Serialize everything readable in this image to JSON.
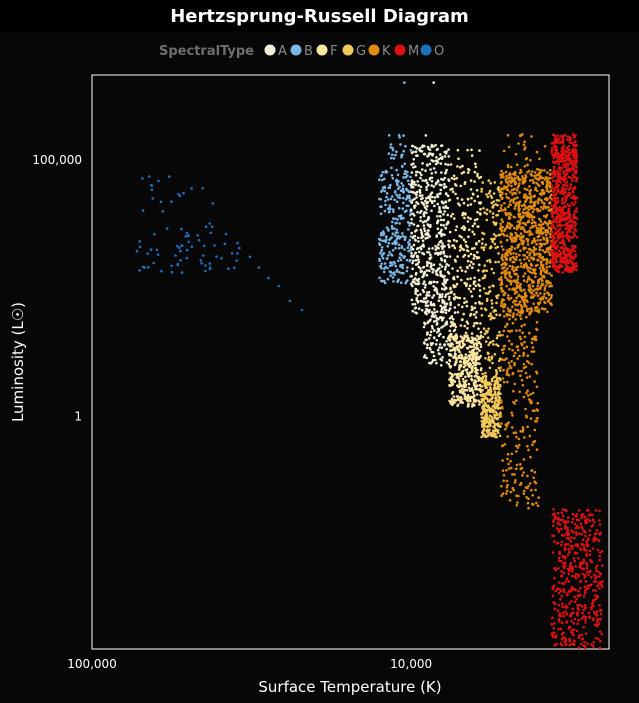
{
  "chart_data": {
    "type": "scatter",
    "title": "Hertzsprung-Russell Diagram",
    "xlabel": "Surface Temperature (K)",
    "ylabel": "Luminosity (L☉)",
    "x_scale": "log",
    "x_reversed": true,
    "x_range": [
      100000,
      2400
    ],
    "y_scale": "log",
    "y_range": [
      3e-05,
      4500000
    ],
    "x_ticks": [
      {
        "value": 100000,
        "label": "100,000"
      },
      {
        "value": 10000,
        "label": "10,000"
      }
    ],
    "y_ticks": [
      {
        "value": 100000,
        "label": "100,000"
      },
      {
        "value": 1,
        "label": "1"
      }
    ],
    "legend": {
      "title": "SpectralType",
      "position": "top",
      "entries": [
        "A",
        "B",
        "F",
        "G",
        "K",
        "M",
        "O"
      ]
    },
    "grid": false,
    "series": [
      {
        "name": "O",
        "color": "#1f6fbf",
        "temp_range": [
          25000,
          70000
        ],
        "clusters": [
          {
            "logT": [
              4.51,
              4.86
            ],
            "logL": [
              2.8,
              3.6
            ],
            "n": 55
          },
          {
            "logT": [
              4.56,
              4.86
            ],
            "logL": [
              3.5,
              4.8
            ],
            "n": 15
          },
          {
            "logT": [
              4.78,
              4.86
            ],
            "logL": [
              3.8,
              4.6
            ],
            "n": 5
          }
        ],
        "points": [
          {
            "x": 60000,
            "y": 10000
          },
          {
            "x": 53000,
            "y": 20000
          },
          {
            "x": 45000,
            "y": 28000
          },
          {
            "x": 42000,
            "y": 5000
          },
          {
            "x": 38000,
            "y": 3600
          },
          {
            "x": 35000,
            "y": 2400
          },
          {
            "x": 32000,
            "y": 1300
          },
          {
            "x": 30000,
            "y": 800
          },
          {
            "x": 28000,
            "y": 500
          },
          {
            "x": 26000,
            "y": 350
          },
          {
            "x": 24000,
            "y": 180
          },
          {
            "x": 22000,
            "y": 120
          }
        ]
      },
      {
        "name": "B",
        "color": "#7bb8e8",
        "temp_range": [
          10000,
          30000
        ],
        "clusters": [
          {
            "logT": [
              4.0,
              4.1
            ],
            "logL": [
              2.6,
              4.8
            ],
            "n": 260
          },
          {
            "logT": [
              4.0,
              4.08
            ],
            "logL": [
              4.8,
              5.5
            ],
            "n": 25
          }
        ],
        "points": [
          {
            "x": 10500,
            "y": 3200000
          },
          {
            "x": 10800,
            "y": 200000
          }
        ]
      },
      {
        "name": "A",
        "color": "#f4f0d6",
        "temp_range": [
          7500,
          10000
        ],
        "clusters": [
          {
            "logT": [
              3.88,
              4.0
            ],
            "logL": [
              2.0,
              5.3
            ],
            "n": 520
          },
          {
            "logT": [
              3.86,
              3.96
            ],
            "logL": [
              1.0,
              2.4
            ],
            "n": 160
          }
        ],
        "points": [
          {
            "x": 8500,
            "y": 3200000
          },
          {
            "x": 9000,
            "y": 300000
          }
        ]
      },
      {
        "name": "F",
        "color": "#fce7a2",
        "temp_range": [
          6000,
          7500
        ],
        "clusters": [
          {
            "logT": [
              3.78,
              3.88
            ],
            "logL": [
              0.2,
              1.6
            ],
            "n": 380
          },
          {
            "logT": [
              3.78,
              3.88
            ],
            "logL": [
              1.5,
              5.2
            ],
            "n": 240
          }
        ],
        "points": [
          {
            "x": 6500,
            "y": 100
          }
        ]
      },
      {
        "name": "G",
        "color": "#f1c85a",
        "temp_range": [
          5200,
          6000
        ],
        "clusters": [
          {
            "logT": [
              3.72,
              3.78
            ],
            "logL": [
              -0.4,
              0.8
            ],
            "n": 300
          },
          {
            "logT": [
              3.72,
              3.78
            ],
            "logL": [
              0.8,
              4.6
            ],
            "n": 160
          }
        ],
        "points": [
          {
            "x": 5600,
            "y": 1
          }
        ]
      },
      {
        "name": "K",
        "color": "#e08a0f",
        "temp_range": [
          3700,
          5200
        ],
        "clusters": [
          {
            "logT": [
              3.56,
              3.72
            ],
            "logL": [
              2.0,
              4.8
            ],
            "n": 900
          },
          {
            "logT": [
              3.6,
              3.72
            ],
            "logL": [
              -1.8,
              2.2
            ],
            "n": 260
          },
          {
            "logT": [
              3.57,
              3.71
            ],
            "logL": [
              4.6,
              5.5
            ],
            "n": 40
          }
        ],
        "points": [
          {
            "x": 4500,
            "y": 0.1
          }
        ]
      },
      {
        "name": "M",
        "color": "#e01010",
        "temp_range": [
          2400,
          3700
        ],
        "clusters": [
          {
            "logT": [
              3.48,
              3.56
            ],
            "logL": [
              2.8,
              5.5
            ],
            "n": 700
          },
          {
            "logT": [
              3.4,
              3.56
            ],
            "logL": [
              -4.6,
              -1.8
            ],
            "n": 500
          }
        ],
        "points": [
          {
            "x": 3200,
            "y": 0.001
          }
        ]
      }
    ]
  }
}
